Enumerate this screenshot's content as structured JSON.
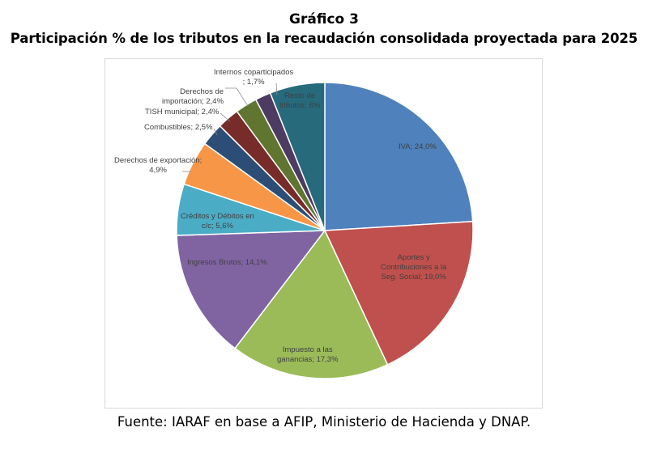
{
  "header": {
    "title": "Gráfico 3",
    "subtitle": "Participación % de los tributos en la recaudación consolidada proyectada para 2025"
  },
  "footer": {
    "source": "Fuente: IARAF en base a AFIP, Ministerio de Hacienda y DNAP."
  },
  "chart_data": {
    "type": "pie",
    "title": "Participación % de los tributos en la recaudación consolidada proyectada para 2025",
    "unit": "%",
    "slices": [
      {
        "name": "IVA",
        "value": 24.0,
        "label_lines": [
          "IVA; 24,0%"
        ],
        "color": "#4f81bd"
      },
      {
        "name": "Aportes y Contribuciones a la Seg. Social",
        "value": 19.0,
        "label_lines": [
          "Aportes y",
          "Contribuciones a la",
          "Seg. Social; 19,0%"
        ],
        "color": "#c0504d"
      },
      {
        "name": "Impuesto a las ganancias",
        "value": 17.3,
        "label_lines": [
          "Impuesto a las",
          "ganancias; 17,3%"
        ],
        "color": "#9bbb59"
      },
      {
        "name": "Ingresos Brutos",
        "value": 14.1,
        "label_lines": [
          "Ingresos Brutos; 14,1%"
        ],
        "color": "#8064a2"
      },
      {
        "name": "Créditos y Débitos en c/c",
        "value": 5.6,
        "label_lines": [
          "Créditos y Débitos en",
          "c/c; 5,6%"
        ],
        "color": "#4bacc6"
      },
      {
        "name": "Derechos de exportación",
        "value": 4.9,
        "label_lines": [
          "Derechos de exportación;",
          "4,9%"
        ],
        "color": "#f79646"
      },
      {
        "name": "Combustibles",
        "value": 2.5,
        "label_lines": [
          "Combustibles; 2,5%"
        ],
        "color": "#2c4d75"
      },
      {
        "name": "TISH municipal",
        "value": 2.4,
        "label_lines": [
          "TISH municipal; 2,4%"
        ],
        "color": "#772c2a"
      },
      {
        "name": "Derechos de importación",
        "value": 2.4,
        "label_lines": [
          "Derechos de",
          "importación; 2,4%"
        ],
        "color": "#5f7530"
      },
      {
        "name": "Internos coparticipados",
        "value": 1.7,
        "label_lines": [
          "Internos coparticipados",
          "; 1,7%"
        ],
        "color": "#4d3b62"
      },
      {
        "name": "Resto de tributos",
        "value": 6.0,
        "label_lines": [
          "Resto de",
          "tributos; 6%"
        ],
        "color": "#276a7c"
      }
    ]
  }
}
